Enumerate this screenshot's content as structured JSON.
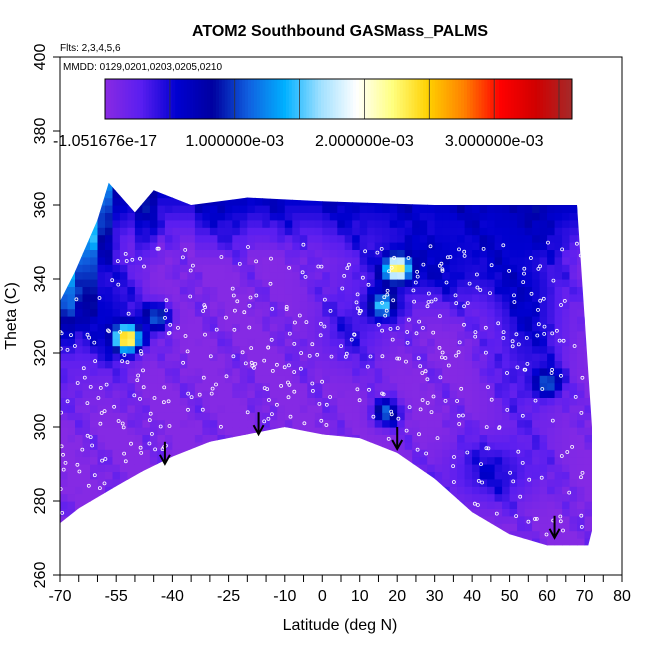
{
  "chart_data": {
    "type": "heatmap",
    "title": "ATOM2 Southbound GASMass_PALMS",
    "flights_note": "Flts: 2,3,4,5,6",
    "dates_note": "MMDD: 0129,0201,0203,0205,0210",
    "xlabel": "Latitude (deg N)",
    "ylabel": "Theta (C)",
    "xlim": [
      -70,
      80
    ],
    "ylim": [
      260,
      400
    ],
    "x_ticks": [
      -70,
      -55,
      -40,
      -25,
      -10,
      0,
      10,
      20,
      30,
      40,
      50,
      60,
      70,
      80
    ],
    "x_ticks_minor": [
      -65,
      -60,
      -50,
      -45,
      -35,
      -30,
      -20,
      -15,
      -5,
      5,
      15,
      25,
      35,
      45,
      55,
      65,
      75
    ],
    "y_ticks": [
      260,
      280,
      300,
      320,
      340,
      360,
      380,
      400
    ],
    "colorbar": {
      "min": 0,
      "max": 0.0036,
      "labels": [
        "-1.051676e-17",
        "1.000000e-03",
        "2.000000e-03",
        "3.000000e-03"
      ],
      "label_values": [
        0,
        0.001,
        0.002,
        0.003
      ],
      "colors": [
        "#8a2be2",
        "#5a1ef0",
        "#0000d0",
        "#0000a0",
        "#1060e0",
        "#00b0ff",
        "#a0e0ff",
        "#ffffff",
        "#ffff80",
        "#ffd000",
        "#ff8000",
        "#ff0000",
        "#d00000",
        "#a52a2a"
      ]
    },
    "domain_top": [
      [
        -70,
        334
      ],
      [
        -66,
        342
      ],
      [
        -60,
        356
      ],
      [
        -57,
        366
      ],
      [
        -50,
        358
      ],
      [
        -45,
        364
      ],
      [
        -35,
        360
      ],
      [
        -20,
        362
      ],
      [
        0,
        361
      ],
      [
        30,
        360
      ],
      [
        50,
        360
      ],
      [
        68,
        360
      ],
      [
        72,
        300
      ],
      [
        72,
        272
      ],
      [
        71,
        268
      ]
    ],
    "domain_bottom": [
      [
        -70,
        274
      ],
      [
        -65,
        278
      ],
      [
        -55,
        284
      ],
      [
        -48,
        288
      ],
      [
        -40,
        292
      ],
      [
        -30,
        296
      ],
      [
        -20,
        298
      ],
      [
        -10,
        300
      ],
      [
        -5,
        299
      ],
      [
        0,
        298
      ],
      [
        10,
        297
      ],
      [
        20,
        293
      ],
      [
        30,
        286
      ],
      [
        40,
        277
      ],
      [
        50,
        271
      ],
      [
        60,
        268
      ],
      [
        71,
        268
      ]
    ],
    "hotspots": [
      {
        "lat": -52,
        "theta": 324,
        "value": 0.0024
      },
      {
        "lat": 20,
        "theta": 343,
        "value": 0.002
      },
      {
        "lat": 16,
        "theta": 333,
        "value": 0.0012
      },
      {
        "lat": -44,
        "theta": 330,
        "value": 0.001
      },
      {
        "lat": 17,
        "theta": 304,
        "value": 0.001
      },
      {
        "lat": 60,
        "theta": 312,
        "value": 0.0009
      }
    ],
    "arrows": [
      {
        "lat": -42,
        "theta": 296
      },
      {
        "lat": -17,
        "theta": 304
      },
      {
        "lat": 20,
        "theta": 300
      },
      {
        "lat": 62,
        "theta": 276
      }
    ]
  }
}
